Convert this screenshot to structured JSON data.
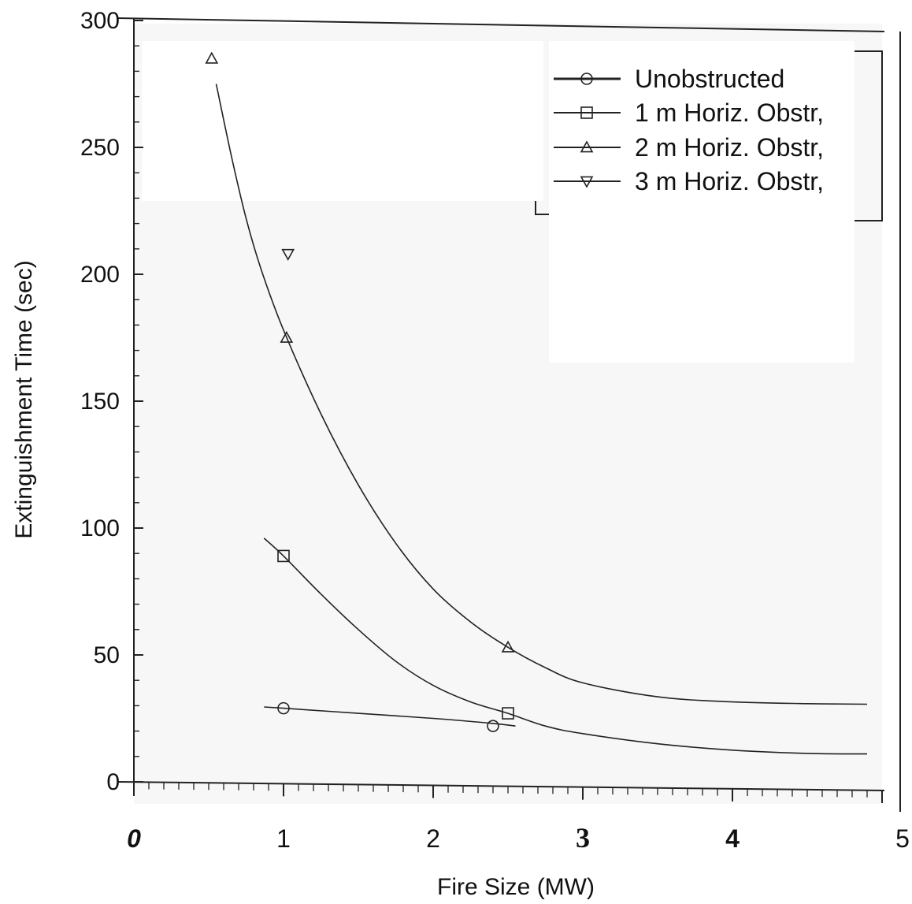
{
  "chart_data": {
    "type": "line",
    "title": "",
    "xlabel": "Fire Size (MW)",
    "ylabel": "Extinguishment Time (sec)",
    "xlim": [
      0,
      5
    ],
    "ylim": [
      0,
      300
    ],
    "x_ticks": [
      0,
      1,
      2,
      3,
      4,
      5
    ],
    "x_tick_labels": [
      "0",
      "1",
      "2",
      "3",
      "4",
      "5"
    ],
    "y_ticks": [
      0,
      50,
      100,
      150,
      200,
      250,
      300
    ],
    "y_tick_labels": [
      "0",
      "50",
      "100",
      "150",
      "200",
      "250",
      "300"
    ],
    "grid": false,
    "legend_position": "top-right",
    "series": [
      {
        "name": "Unobstructed",
        "marker": "circle",
        "points": [
          {
            "x": 1.0,
            "y": 29
          },
          {
            "x": 2.4,
            "y": 22
          }
        ],
        "curve": [
          [
            0.87,
            29.5
          ],
          [
            1.0,
            29
          ],
          [
            1.5,
            27
          ],
          [
            2.0,
            25
          ],
          [
            2.4,
            23
          ],
          [
            2.55,
            22
          ]
        ]
      },
      {
        "name": "1 m Horiz. Obstr,",
        "marker": "square",
        "points": [
          {
            "x": 1.0,
            "y": 89
          },
          {
            "x": 2.5,
            "y": 27
          }
        ],
        "curve": [
          [
            0.87,
            96
          ],
          [
            1.0,
            89
          ],
          [
            1.25,
            74
          ],
          [
            1.5,
            60
          ],
          [
            1.75,
            47.5
          ],
          [
            2.0,
            38
          ],
          [
            2.25,
            31.5
          ],
          [
            2.5,
            27
          ],
          [
            2.75,
            22
          ],
          [
            3.0,
            19
          ],
          [
            3.5,
            15
          ],
          [
            4.0,
            12.5
          ],
          [
            4.5,
            11.2
          ],
          [
            4.9,
            11
          ]
        ]
      },
      {
        "name": "2 m Horiz. Obstr,",
        "marker": "triangle-up",
        "points": [
          {
            "x": 0.52,
            "y": 285
          },
          {
            "x": 1.02,
            "y": 175
          },
          {
            "x": 2.5,
            "y": 53
          }
        ],
        "curve": [
          [
            0.55,
            275
          ],
          [
            0.65,
            247
          ],
          [
            0.75,
            222
          ],
          [
            0.85,
            202
          ],
          [
            1.0,
            178
          ],
          [
            1.25,
            145
          ],
          [
            1.5,
            117
          ],
          [
            1.75,
            94
          ],
          [
            2.0,
            76
          ],
          [
            2.25,
            63
          ],
          [
            2.5,
            53
          ],
          [
            2.75,
            45
          ],
          [
            3.0,
            39
          ],
          [
            3.5,
            33.5
          ],
          [
            4.0,
            31.5
          ],
          [
            4.5,
            30.8
          ],
          [
            4.9,
            30.6
          ]
        ]
      },
      {
        "name": "3 m Horiz. Obstr,",
        "marker": "triangle-down",
        "points": [
          {
            "x": 1.03,
            "y": 208
          }
        ],
        "curve": []
      }
    ]
  }
}
